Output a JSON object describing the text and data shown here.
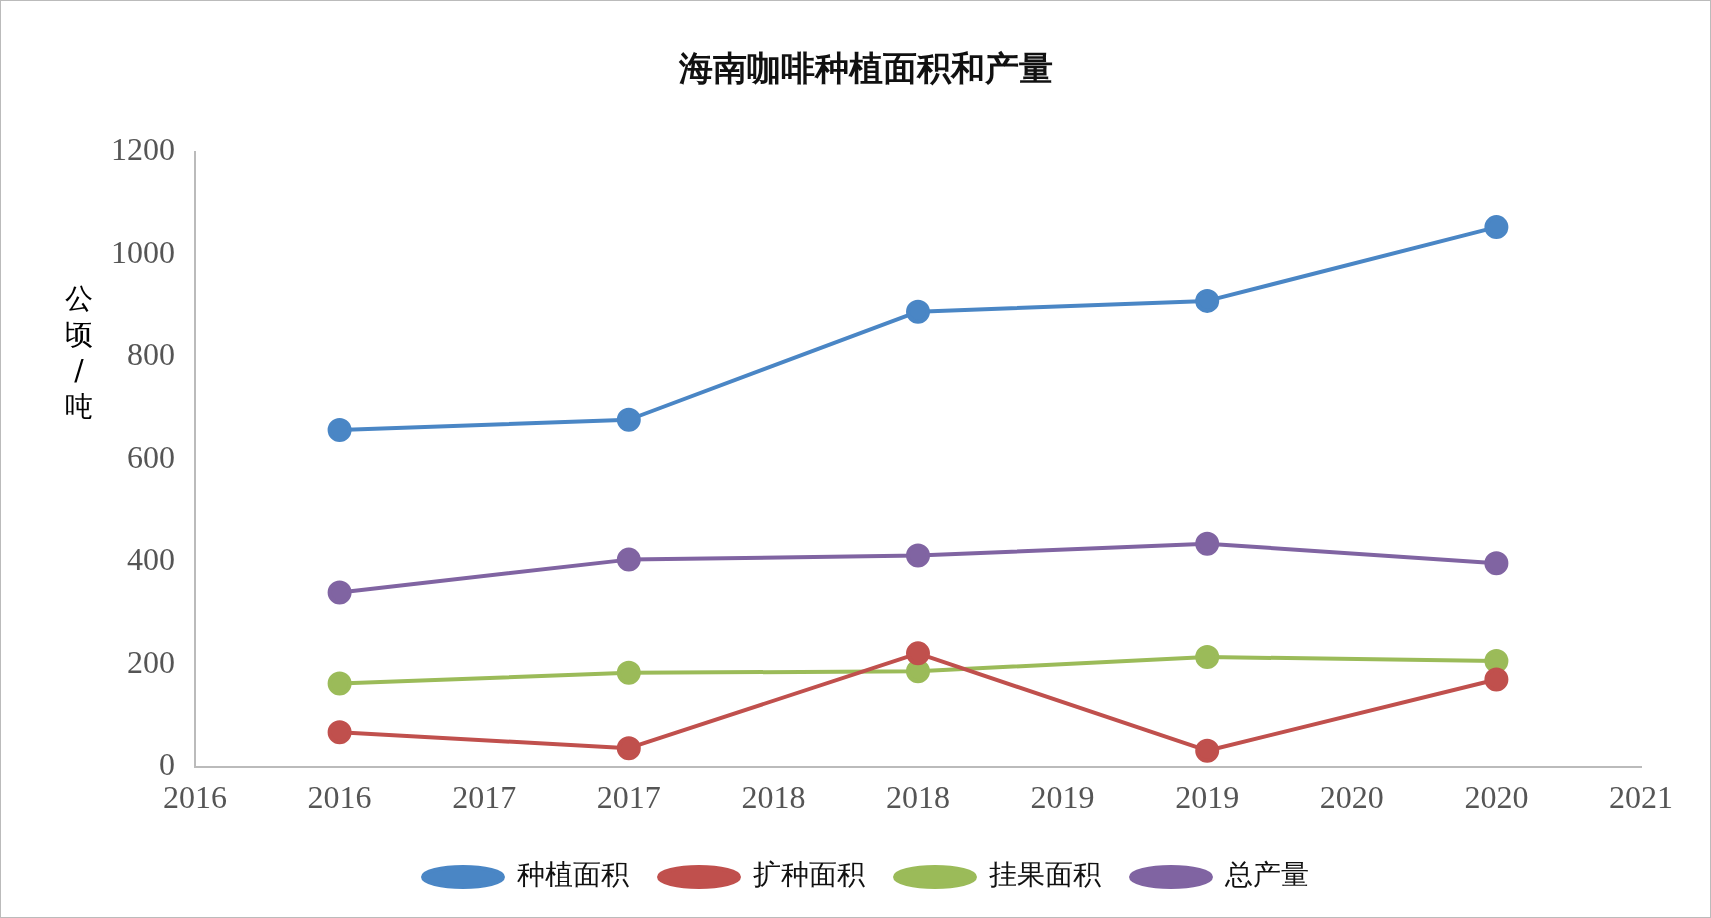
{
  "chart_data": {
    "type": "line",
    "title": "海南咖啡种植面积和产量",
    "ylabel": "公顷/吨",
    "x": [
      2016.5,
      2017.5,
      2018.5,
      2019.5,
      2020.5
    ],
    "series": [
      {
        "name": "种植面积",
        "color": "#4a86c5",
        "values": [
          657,
          677,
          888,
          909,
          1053
        ]
      },
      {
        "name": "扩种面积",
        "color": "#c0504d",
        "values": [
          67,
          36,
          221,
          31,
          170
        ]
      },
      {
        "name": "挂果面积",
        "color": "#9bbb59",
        "values": [
          162,
          183,
          186,
          214,
          206
        ]
      },
      {
        "name": "总产量",
        "color": "#8064a2",
        "values": [
          340,
          404,
          412,
          435,
          397
        ]
      }
    ],
    "xlim": [
      2016,
      2021
    ],
    "xticks": [
      2016,
      {
        "value": 2016.5,
        "label": "2016"
      },
      2017,
      {
        "value": 2017.5,
        "label": "2017"
      },
      2018,
      {
        "value": 2018.5,
        "label": "2018"
      },
      2019,
      {
        "value": 2019.5,
        "label": "2019"
      },
      2020,
      {
        "value": 2020.5,
        "label": "2020"
      },
      2021
    ],
    "ylim": [
      0,
      1200
    ],
    "yticks": [
      0,
      200,
      400,
      600,
      800,
      1000,
      1200
    ],
    "grid": false,
    "legend": "bottom",
    "marker": "circle",
    "line_style": "solid"
  }
}
